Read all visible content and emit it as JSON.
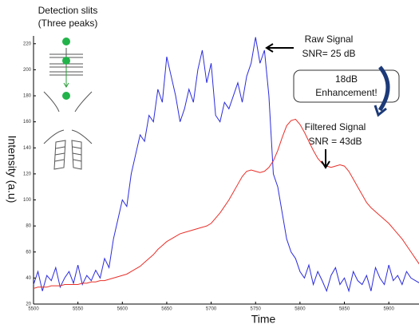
{
  "chart_data": {
    "type": "line",
    "x": [
      5500,
      5505,
      5510,
      5515,
      5520,
      5525,
      5530,
      5535,
      5540,
      5545,
      5550,
      5555,
      5560,
      5565,
      5570,
      5575,
      5580,
      5585,
      5590,
      5595,
      5600,
      5605,
      5610,
      5615,
      5620,
      5625,
      5630,
      5635,
      5640,
      5645,
      5650,
      5655,
      5660,
      5665,
      5670,
      5675,
      5680,
      5685,
      5690,
      5695,
      5700,
      5705,
      5710,
      5715,
      5720,
      5725,
      5730,
      5735,
      5740,
      5745,
      5750,
      5755,
      5760,
      5765,
      5770,
      5775,
      5780,
      5785,
      5790,
      5795,
      5800,
      5805,
      5810,
      5815,
      5820,
      5825,
      5830,
      5835,
      5840,
      5845,
      5850,
      5855,
      5860,
      5865,
      5870,
      5875,
      5880,
      5885,
      5890,
      5895,
      5900,
      5905,
      5910,
      5915,
      5920,
      5925,
      5930,
      5935
    ],
    "series": [
      {
        "name": "Raw Signal",
        "color": "#2b2bdd",
        "values": [
          35,
          45,
          30,
          42,
          38,
          48,
          33,
          40,
          45,
          36,
          50,
          35,
          42,
          38,
          46,
          40,
          55,
          48,
          70,
          85,
          100,
          95,
          120,
          135,
          150,
          145,
          165,
          160,
          185,
          175,
          210,
          195,
          180,
          160,
          170,
          185,
          175,
          200,
          215,
          190,
          205,
          165,
          160,
          175,
          170,
          180,
          190,
          175,
          195,
          205,
          225,
          205,
          215,
          180,
          120,
          110,
          90,
          70,
          60,
          55,
          45,
          40,
          50,
          35,
          45,
          38,
          30,
          42,
          48,
          35,
          40,
          30,
          45,
          38,
          35,
          42,
          30,
          48,
          40,
          35,
          50,
          38,
          42,
          35,
          45,
          40,
          38,
          36
        ]
      },
      {
        "name": "Filtered Signal",
        "color": "#e8302a",
        "values": [
          32,
          33,
          33,
          33,
          34,
          34,
          34,
          35,
          35,
          35,
          35,
          36,
          36,
          37,
          37,
          38,
          38,
          39,
          40,
          41,
          42,
          43,
          45,
          47,
          49,
          52,
          55,
          58,
          62,
          65,
          68,
          70,
          72,
          74,
          75,
          76,
          77,
          78,
          79,
          80,
          82,
          86,
          90,
          95,
          100,
          106,
          112,
          118,
          122,
          123,
          122,
          121,
          122,
          125,
          130,
          138,
          148,
          157,
          161,
          162,
          158,
          152,
          145,
          138,
          132,
          128,
          126,
          125,
          126,
          127,
          126,
          122,
          116,
          110,
          104,
          98,
          94,
          91,
          88,
          85,
          82,
          78,
          74,
          70,
          65,
          60,
          55,
          50
        ]
      }
    ],
    "xlim": [
      5500,
      5934
    ],
    "ylim": [
      20,
      226
    ],
    "xticks": [
      5500,
      5550,
      5600,
      5650,
      5700,
      5750,
      5800,
      5850,
      5900
    ],
    "yticks": [
      20,
      40,
      60,
      80,
      100,
      120,
      140,
      160,
      180,
      200,
      220
    ],
    "xlabel": "Time",
    "ylabel": "Intensity (a.u)",
    "annotations": {
      "slits_title": "Detection slits",
      "slits_sub": "(Three peaks)",
      "raw": "Raw Signal",
      "raw_snr": "SNR= 25 dB",
      "enh1": "18dB",
      "enh2": "Enhancement!",
      "filtered": "Filtered Signal",
      "filtered_snr": "SNR = 43dB"
    }
  }
}
